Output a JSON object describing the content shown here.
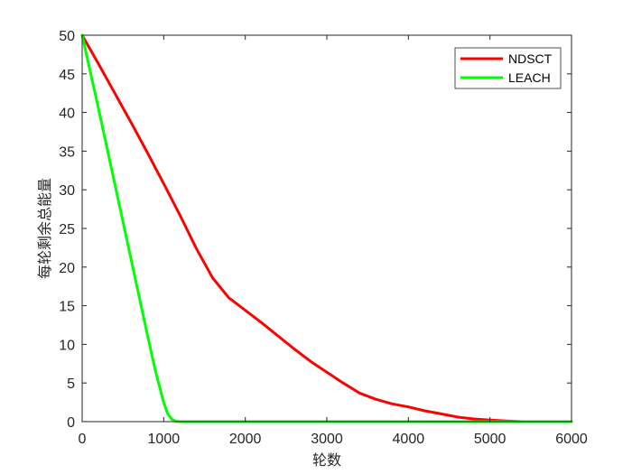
{
  "chart_data": {
    "type": "line",
    "xlabel": "轮数",
    "ylabel": "每轮剩余总能量",
    "xlim": [
      0,
      6000
    ],
    "ylim": [
      0,
      50
    ],
    "x_ticks": [
      0,
      1000,
      2000,
      3000,
      4000,
      5000,
      6000
    ],
    "y_ticks": [
      0,
      5,
      10,
      15,
      20,
      25,
      30,
      35,
      40,
      45,
      50
    ],
    "x_tick_labels": [
      "0",
      "1000",
      "2000",
      "3000",
      "4000",
      "5000",
      "6000"
    ],
    "y_tick_labels": [
      "0",
      "5",
      "10",
      "15",
      "20",
      "25",
      "30",
      "35",
      "40",
      "45",
      "50"
    ],
    "grid": false,
    "legend_position": "top-right",
    "series": [
      {
        "name": "NDSCT",
        "color": "#ff0000",
        "x": [
          0,
          200,
          400,
          600,
          800,
          1000,
          1200,
          1400,
          1600,
          1800,
          2000,
          2200,
          2400,
          2600,
          2800,
          3000,
          3200,
          3400,
          3600,
          3800,
          4000,
          4200,
          4400,
          4600,
          4800,
          5000,
          5200,
          5400,
          5600,
          6000
        ],
        "y": [
          50,
          46.3,
          42.5,
          38.7,
          34.8,
          30.8,
          26.7,
          22.4,
          18.6,
          16.0,
          14.4,
          12.8,
          11.1,
          9.4,
          7.8,
          6.4,
          5.0,
          3.7,
          2.9,
          2.3,
          1.9,
          1.4,
          1.0,
          0.6,
          0.35,
          0.2,
          0.08,
          0.0,
          0.0,
          0.0
        ]
      },
      {
        "name": "LEACH",
        "color": "#00ff00",
        "x": [
          0,
          200,
          400,
          600,
          800,
          900,
          1000,
          1050,
          1100,
          1150,
          1200,
          1500,
          2000,
          3000,
          4000,
          5000,
          6000
        ],
        "y": [
          50,
          40.5,
          30.8,
          21.0,
          11.2,
          6.5,
          2.5,
          1.0,
          0.3,
          0.05,
          0,
          0,
          0,
          0,
          0,
          0,
          0
        ]
      }
    ]
  }
}
